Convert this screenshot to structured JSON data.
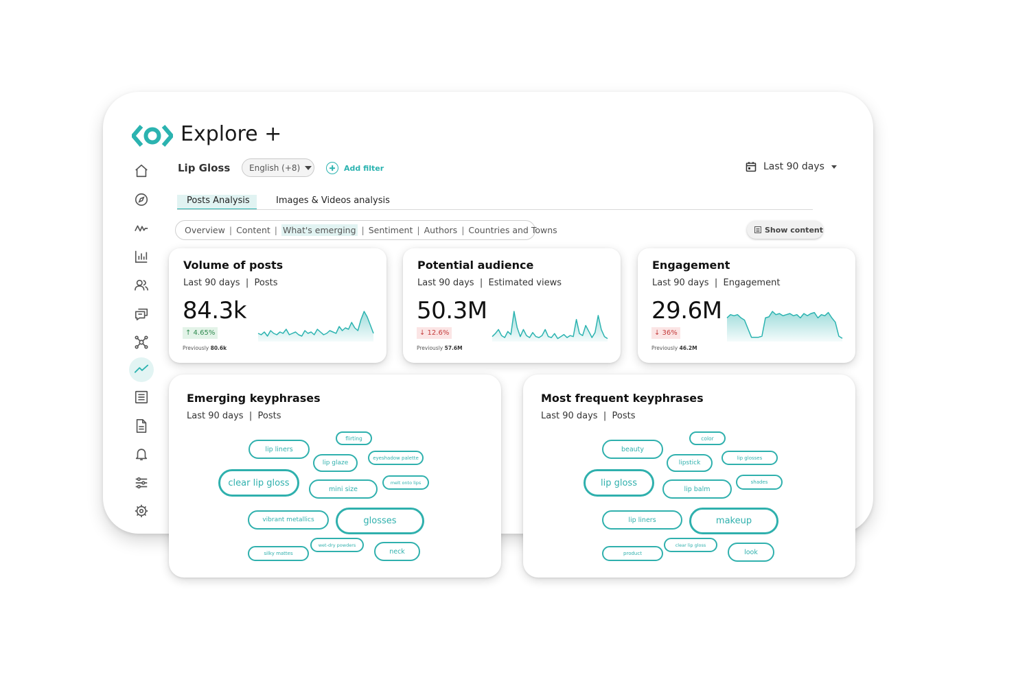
{
  "app": {
    "title": "Explore +"
  },
  "colors": {
    "accent": "#2bb3b0",
    "up": "#2e8a4e",
    "down": "#c43a3a"
  },
  "sidebar": {
    "items": [
      {
        "icon": "home-icon"
      },
      {
        "icon": "compass-icon"
      },
      {
        "icon": "pulse-icon"
      },
      {
        "icon": "bar-chart-icon"
      },
      {
        "icon": "users-icon"
      },
      {
        "icon": "chat-icon"
      },
      {
        "icon": "network-icon"
      },
      {
        "icon": "trend-icon",
        "active": true
      },
      {
        "icon": "list-icon"
      },
      {
        "icon": "document-icon"
      },
      {
        "icon": "bell-icon"
      },
      {
        "icon": "sliders-icon"
      },
      {
        "icon": "gear-icon"
      }
    ]
  },
  "header": {
    "query": "Lip Gloss",
    "language": "English (+8)",
    "add_filter": "Add filter",
    "date_range": "Last 90 days"
  },
  "tabs": [
    {
      "label": "Posts Analysis",
      "active": true
    },
    {
      "label": "Images & Videos analysis"
    }
  ],
  "subnav": {
    "items": [
      "Overview",
      "Content",
      "What's emerging",
      "Sentiment",
      "Authors",
      "Countries and Towns"
    ],
    "active": "What's emerging",
    "separator": "|"
  },
  "show_content": "Show content",
  "metrics": [
    {
      "title": "Volume of posts",
      "period": "Last 90 days",
      "sep": "|",
      "unit": "Posts",
      "value": "84.3k",
      "change": "↑ 4.65%",
      "direction": "up",
      "previous_label": "Previously",
      "previous_value": "80.6k",
      "spark": [
        6,
        5,
        7,
        4,
        8,
        6,
        5,
        7,
        6,
        9,
        5,
        6,
        7,
        5,
        4,
        8,
        6,
        7,
        5,
        9,
        7,
        5,
        6,
        8,
        7,
        6,
        11,
        8,
        10,
        9,
        14,
        10,
        8,
        16,
        22,
        18,
        12,
        6
      ]
    },
    {
      "title": "Potential audience",
      "period": "Last 90 days",
      "sep": "|",
      "unit": "Estimated views",
      "value": "50.3M",
      "change": "↓ 12.6%",
      "direction": "down",
      "previous_label": "Previously",
      "previous_value": "57.6M",
      "spark": [
        5,
        8,
        12,
        6,
        4,
        10,
        7,
        30,
        14,
        5,
        12,
        6,
        4,
        9,
        5,
        4,
        6,
        12,
        5,
        4,
        8,
        3,
        5,
        7,
        4,
        6,
        5,
        22,
        8,
        6,
        16,
        10,
        4,
        9,
        26,
        12,
        5,
        3
      ]
    },
    {
      "title": "Engagement",
      "period": "Last 90 days",
      "sep": "|",
      "unit": "Engagement",
      "value": "29.6M",
      "change": "↓ 36%",
      "direction": "down",
      "previous_label": "Previously",
      "previous_value": "46.2M",
      "spark": [
        22,
        25,
        24,
        25,
        22,
        20,
        12,
        4,
        4,
        4,
        5,
        22,
        23,
        28,
        25,
        26,
        24,
        25,
        26,
        24,
        25,
        22,
        26,
        24,
        26,
        27,
        22,
        25,
        24,
        27,
        22,
        18,
        5,
        3
      ]
    }
  ],
  "emerging": {
    "title": "Emerging keyphrases",
    "period": "Last 90 days",
    "sep": "|",
    "unit": "Posts",
    "phrases": [
      "lip liners",
      "flirting",
      "eyeshadow palette",
      "lip glaze",
      "clear lip gloss",
      "melt onto lips",
      "mini size",
      "vibrant metallics",
      "glosses",
      "wet-dry powders",
      "neck",
      "silky mattes"
    ]
  },
  "frequent": {
    "title": "Most frequent keyphrases",
    "period": "Last 90 days",
    "sep": "|",
    "unit": "Posts",
    "phrases": [
      "beauty",
      "color",
      "lipstick",
      "lip glosses",
      "lip gloss",
      "shades",
      "lip balm",
      "lip liners",
      "makeup",
      "clear lip gloss",
      "product",
      "look"
    ]
  }
}
